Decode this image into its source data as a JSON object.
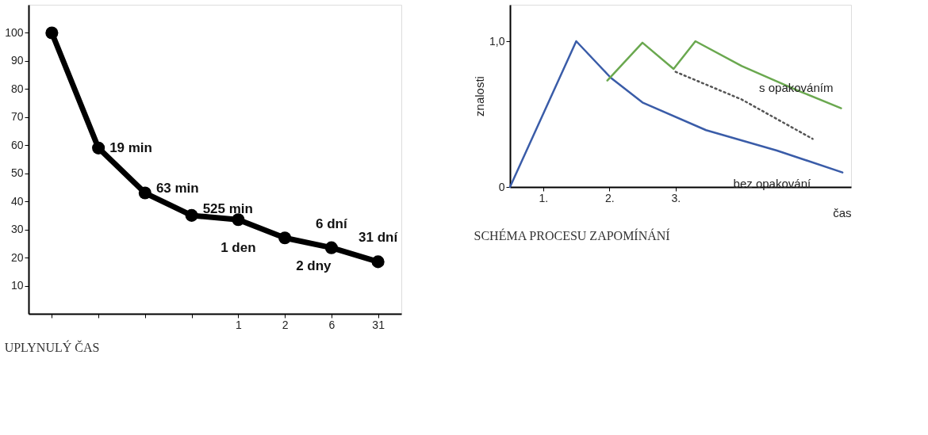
{
  "chart_data": [
    {
      "type": "line",
      "title": "UPLYNULÝ ČAS",
      "marker": "circle",
      "line_style": "solid",
      "grid": false,
      "categories": [
        null,
        null,
        null,
        null,
        "1",
        "2",
        "6",
        "31"
      ],
      "series": [
        {
          "color": "#000000",
          "values": [
            100,
            59,
            43,
            35,
            33.5,
            27,
            23.5,
            18.5
          ]
        }
      ],
      "ylim": [
        0,
        110
      ],
      "yticks": [
        10,
        20,
        30,
        40,
        50,
        60,
        70,
        80,
        90,
        100
      ],
      "annotations": [
        "19 min",
        "63 min",
        "525 min",
        "1 den",
        "2 dny",
        "6 dní",
        "31 dní"
      ]
    },
    {
      "type": "line",
      "title": "SCHÉMA PROCESU ZAPOMÍNÁNÍ",
      "xlabel": "čas",
      "ylabel": "znalosti",
      "grid": false,
      "marker": "none",
      "xlim": [
        0,
        5.15
      ],
      "xticks": [
        {
          "value": 0.5,
          "label": "1."
        },
        {
          "value": 1.5,
          "label": "2."
        },
        {
          "value": 2.5,
          "label": "3."
        }
      ],
      "ylim": [
        0,
        1.25
      ],
      "yticks": [
        0,
        {
          "value": 1,
          "label": "1,0"
        }
      ],
      "series": [
        {
          "name": "bez opakování",
          "color": "#3a5ca8",
          "line_style": "solid",
          "x": [
            0,
            1,
            1.52,
            2,
            2.96,
            4.03,
            5.02
          ],
          "values": [
            0,
            1,
            0.75,
            0.58,
            0.39,
            0.25,
            0.1
          ]
        },
        {
          "name": "s opakováním",
          "color": "#6aa84f",
          "line_style": "solid",
          "x": [
            1.47,
            2,
            2.47,
            2.8,
            3.5,
            4.3,
            5
          ],
          "values": [
            0.73,
            0.99,
            0.81,
            1,
            0.83,
            0.67,
            0.54
          ]
        },
        {
          "color": "#555555",
          "line_style": "dotted",
          "x": [
            2.5,
            3.5,
            4.57
          ],
          "values": [
            0.79,
            0.6,
            0.33
          ]
        }
      ]
    }
  ]
}
